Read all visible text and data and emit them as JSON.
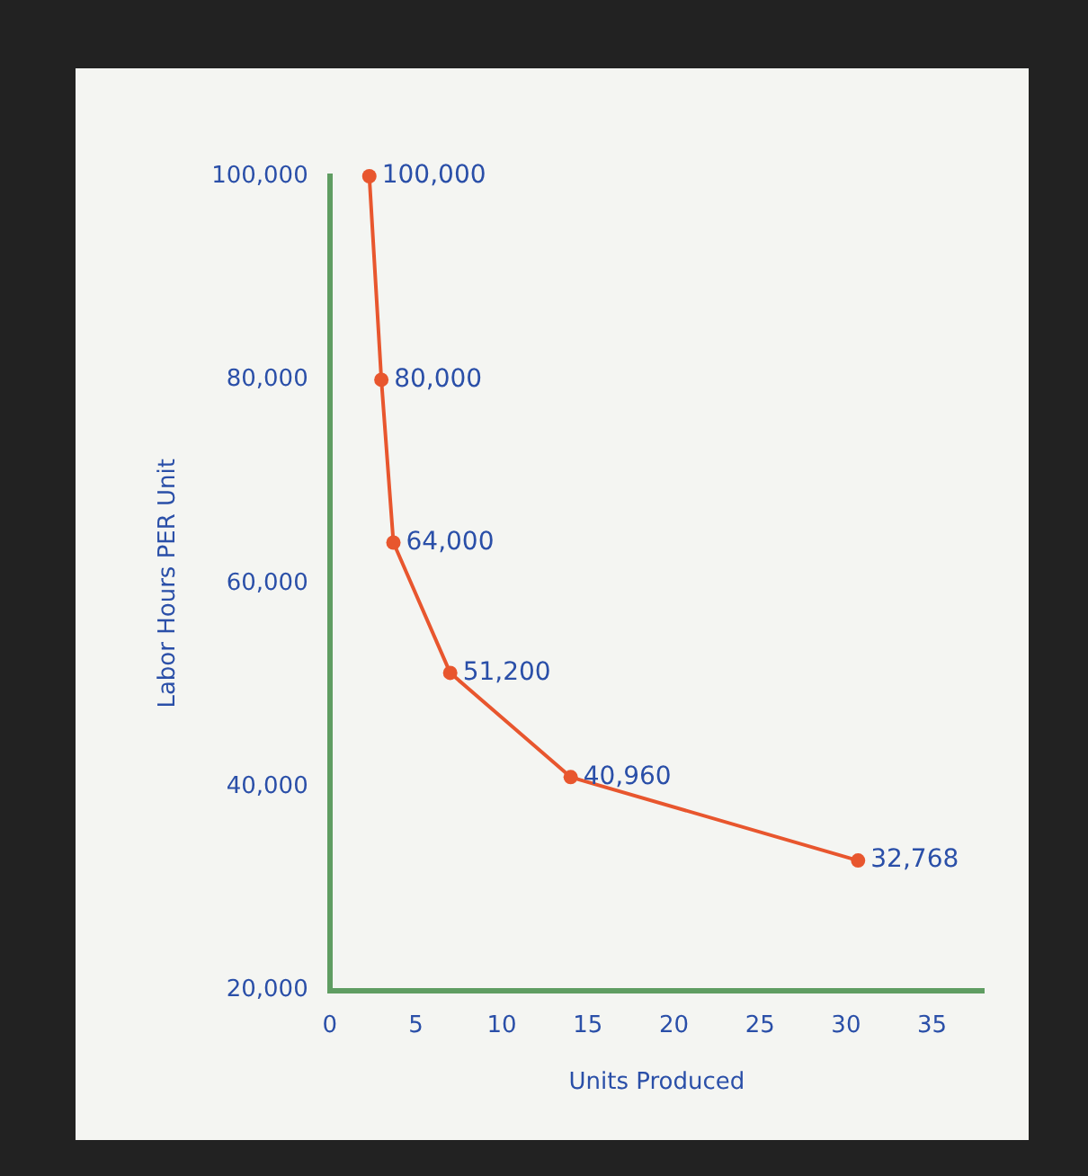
{
  "chart_data": {
    "type": "line",
    "xlabel": "Units Produced",
    "ylabel": "Labor Hours PER Unit",
    "x": [
      2.3,
      3,
      3.7,
      7,
      14,
      30.7
    ],
    "series": [
      {
        "color": "#e8562e",
        "values": [
          100000,
          80000,
          64000,
          51200,
          40960,
          32768
        ]
      }
    ],
    "value_labels": [
      "100,000",
      "80,000",
      "64,000",
      "51,200",
      "40,960",
      "32,768"
    ],
    "xlim": [
      0,
      38
    ],
    "xticks": [
      0,
      5,
      10,
      15,
      20,
      25,
      30,
      35
    ],
    "ylim": [
      20000,
      100000
    ],
    "yticks": [
      {
        "value": 20000,
        "label": "20,000"
      },
      {
        "value": 40000,
        "label": "40,000"
      },
      {
        "value": 60000,
        "label": "60,000"
      },
      {
        "value": 80000,
        "label": "80,000"
      },
      {
        "value": 100000,
        "label": "100,000"
      }
    ],
    "marker": "circle",
    "line_style": "solid",
    "grid": false,
    "legend": false
  }
}
